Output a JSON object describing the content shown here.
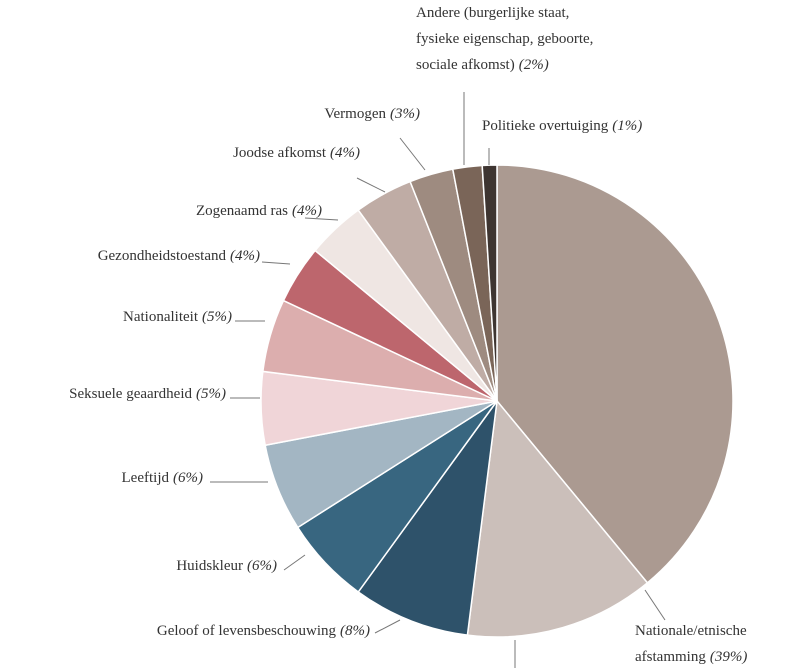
{
  "chart_data": {
    "type": "pie",
    "categories": [
      "Nationale/etnische afstamming",
      null,
      "Geloof of levensbeschouwing",
      "Huidskleur",
      "Leeftijd",
      "Seksuele geaardheid",
      "Nationaliteit",
      "Gezondheidstoestand",
      "Zogenaamd ras",
      "Joodse afkomst",
      "Vermogen",
      "Andere (burgerlijke staat, fysieke eigenschap, geboorte, sociale afkomst)",
      "Politieke overtuiging"
    ],
    "values": [
      39,
      13,
      8,
      6,
      6,
      5,
      5,
      4,
      4,
      4,
      3,
      2,
      1
    ],
    "value_labels": [
      "(39%)",
      null,
      "(8%)",
      "(6%)",
      "(6%)",
      "(5%)",
      "(5%)",
      "(4%)",
      "(4%)",
      "(4%)",
      "(3%)",
      "(2%)",
      "(1%)"
    ],
    "colors": [
      "#ab9a91",
      "#cbbfba",
      "#2e526a",
      "#386680",
      "#a3b6c3",
      "#f0d5d8",
      "#dcaeae",
      "#bd666d",
      "#efe6e3",
      "#bfaca5",
      "#9e8b80",
      "#7a6558",
      "#3e3531"
    ]
  }
}
